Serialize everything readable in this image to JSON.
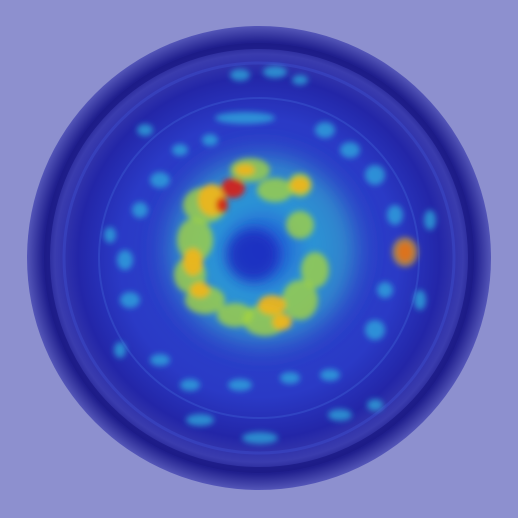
{
  "image": {
    "subject": "petri-dish-heatmap-overlay",
    "colors": {
      "background": "#8d90cf",
      "dish_outer": "#26249c",
      "dish_inner": "#2a39c7",
      "low": "#1f3fd6",
      "mid": "#2fb3df",
      "high_mid": "#a8d63a",
      "high": "#f2b51a",
      "peak": "#d1221a"
    }
  }
}
